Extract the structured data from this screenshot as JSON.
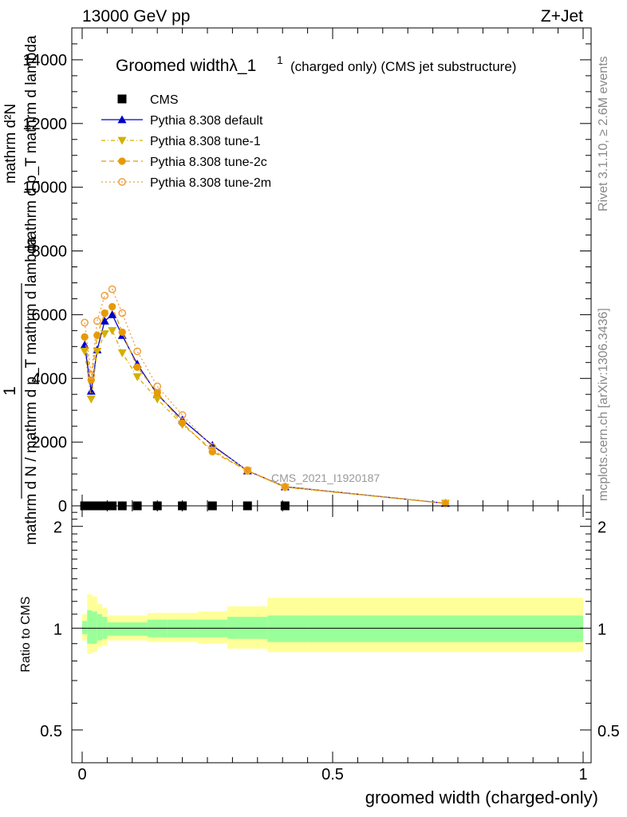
{
  "header": {
    "left": "13000 GeV pp",
    "right": "Z+Jet"
  },
  "side": {
    "top": "Rivet 3.1.10, ≥ 2.6M events",
    "bottom": "mcplots.cern.ch [arXiv:1306.3436]"
  },
  "watermark": "CMS_2021_I1920187",
  "chart_data": [
    {
      "type": "line",
      "title_main": "Groomed widthλ_1",
      "title_sup": "1",
      "title_rest": "(charged only) (CMS jet substructure)",
      "ylabel_lines": [
        "1",
        "mathrm d N / mathrm d p_T mathrm d lambda",
        "mathrm d²N",
        "mathrm d p_T mathrm d lambda"
      ],
      "xlim": [
        0,
        1
      ],
      "ylim": [
        0,
        15000
      ],
      "yticks": [
        0,
        2000,
        4000,
        6000,
        8000,
        10000,
        12000,
        14000
      ],
      "ytick_labels": [
        "0",
        "2000",
        "4000",
        "6000",
        "8000",
        "10000",
        "12000",
        "14000"
      ],
      "legend_position": "top-left",
      "series": [
        {
          "name": "CMS",
          "color": "#000000",
          "marker": "square",
          "x": [
            0.005,
            0.015,
            0.025,
            0.035,
            0.045,
            0.06,
            0.08,
            0.11,
            0.15,
            0.2,
            0.26,
            0.33,
            0.405
          ],
          "y": [
            0,
            0,
            0,
            0,
            0,
            0,
            0,
            0,
            0,
            0,
            0,
            0,
            0
          ]
        },
        {
          "name": "Pythia 8.308 default",
          "color": "#0000cc",
          "marker": "triangle-up",
          "x": [
            0.005,
            0.018,
            0.03,
            0.045,
            0.06,
            0.08,
            0.11,
            0.15,
            0.2,
            0.26,
            0.33,
            0.405,
            0.725
          ],
          "y": [
            5050,
            3600,
            4900,
            5800,
            6000,
            5350,
            4450,
            3500,
            2700,
            1900,
            1100,
            600,
            80
          ]
        },
        {
          "name": "Pythia 8.308 tune-1",
          "color": "#d4b000",
          "marker": "triangle-down",
          "x": [
            0.005,
            0.018,
            0.03,
            0.045,
            0.06,
            0.08,
            0.11,
            0.15,
            0.2,
            0.26,
            0.33,
            0.405,
            0.725
          ],
          "y": [
            4850,
            3350,
            4850,
            5400,
            5500,
            4800,
            4050,
            3350,
            2550,
            1750,
            1100,
            580,
            80
          ]
        },
        {
          "name": "Pythia 8.308 tune-2c",
          "color": "#e69a00",
          "marker": "circle",
          "x": [
            0.005,
            0.018,
            0.03,
            0.045,
            0.06,
            0.08,
            0.11,
            0.15,
            0.2,
            0.26,
            0.33,
            0.405,
            0.725
          ],
          "y": [
            5300,
            3950,
            5350,
            6050,
            6250,
            5450,
            4350,
            3550,
            2600,
            1700,
            1100,
            590,
            80
          ]
        },
        {
          "name": "Pythia 8.308 tune-2m",
          "color": "#f0a040",
          "marker": "circle-open",
          "x": [
            0.005,
            0.018,
            0.03,
            0.045,
            0.06,
            0.08,
            0.11,
            0.15,
            0.2,
            0.26,
            0.33,
            0.405,
            0.725
          ],
          "y": [
            5750,
            4100,
            5800,
            6600,
            6800,
            6050,
            4850,
            3750,
            2850,
            1850,
            1120,
            600,
            80
          ]
        }
      ]
    },
    {
      "type": "band",
      "ylabel": "Ratio to CMS",
      "xlabel": "groomed width (charged-only)",
      "scale": "log",
      "xlim": [
        0,
        1
      ],
      "ylim": [
        0.4,
        2.3
      ],
      "xticks": [
        0,
        0.5,
        1
      ],
      "xtick_labels": [
        "0",
        "0.5",
        "1"
      ],
      "yticks": [
        0.5,
        1,
        2
      ],
      "ytick_labels": [
        "0.5",
        "1",
        "2"
      ],
      "bin_edges": [
        0,
        0.01,
        0.02,
        0.03,
        0.04,
        0.05,
        0.07,
        0.09,
        0.13,
        0.17,
        0.23,
        0.29,
        0.37,
        0.45,
        1.0
      ],
      "outer_band": {
        "color": "#ffff99",
        "lo": [
          0.92,
          0.84,
          0.85,
          0.88,
          0.89,
          0.92,
          0.92,
          0.92,
          0.91,
          0.91,
          0.9,
          0.87,
          0.85,
          0.85
        ],
        "hi": [
          1.1,
          1.26,
          1.24,
          1.18,
          1.15,
          1.09,
          1.09,
          1.09,
          1.11,
          1.11,
          1.12,
          1.16,
          1.23,
          1.23
        ]
      },
      "inner_band": {
        "color": "#99ff99",
        "lo": [
          0.96,
          0.9,
          0.9,
          0.92,
          0.93,
          0.95,
          0.95,
          0.95,
          0.94,
          0.94,
          0.94,
          0.93,
          0.91,
          0.91
        ],
        "hi": [
          1.05,
          1.13,
          1.12,
          1.1,
          1.08,
          1.04,
          1.04,
          1.04,
          1.06,
          1.06,
          1.06,
          1.08,
          1.09,
          1.09
        ]
      },
      "reference_line": 1
    }
  ]
}
